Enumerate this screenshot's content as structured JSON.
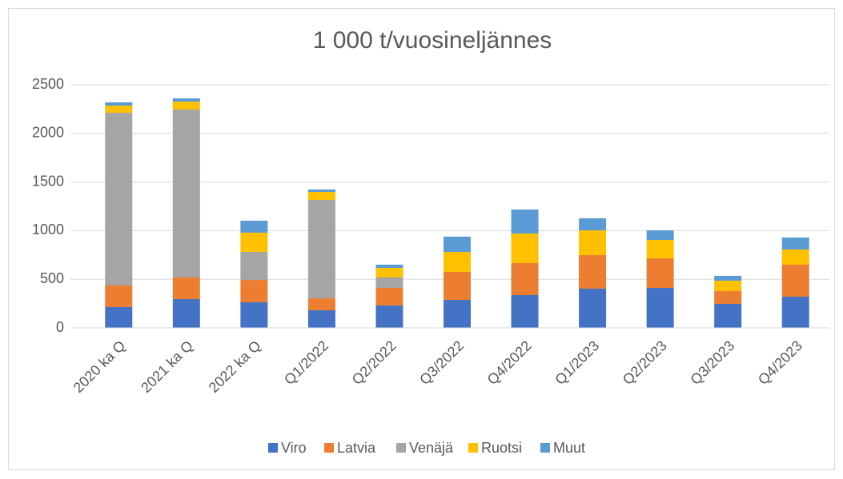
{
  "chart_data": {
    "type": "stacked_bar",
    "title": "1 000 t/vuosineljännes",
    "categories": [
      "2020 ka Q",
      "2021 ka Q",
      "2022 ka Q",
      "Q1/2022",
      "Q2/2022",
      "Q3/2022",
      "Q4/2022",
      "Q1/2023",
      "Q2/2023",
      "Q3/2023",
      "Q4/2023"
    ],
    "series": [
      {
        "name": "Viro",
        "color": "#4472c4",
        "values": [
          214,
          296,
          263,
          181,
          230,
          288,
          337,
          403,
          411,
          247,
          321
        ]
      },
      {
        "name": "Latvia",
        "color": "#ed7d31",
        "values": [
          222,
          222,
          230,
          123,
          181,
          288,
          329,
          345,
          304,
          131,
          329
        ]
      },
      {
        "name": "Venäjä",
        "color": "#a5a5a5",
        "values": [
          1776,
          1727,
          288,
          1012,
          107,
          0,
          0,
          0,
          0,
          0,
          0
        ]
      },
      {
        "name": "Ruotsi",
        "color": "#ffc000",
        "values": [
          74,
          82,
          198,
          82,
          99,
          205,
          304,
          255,
          190,
          107,
          156
        ]
      },
      {
        "name": "Muut",
        "color": "#5b9bd5",
        "values": [
          33,
          33,
          123,
          25,
          33,
          157,
          247,
          124,
          98,
          50,
          123
        ]
      }
    ],
    "ylim": [
      0,
      2500
    ],
    "yticks": [
      0,
      500,
      1000,
      1500,
      2000,
      2500
    ],
    "grid": true,
    "legend": "bottom"
  }
}
